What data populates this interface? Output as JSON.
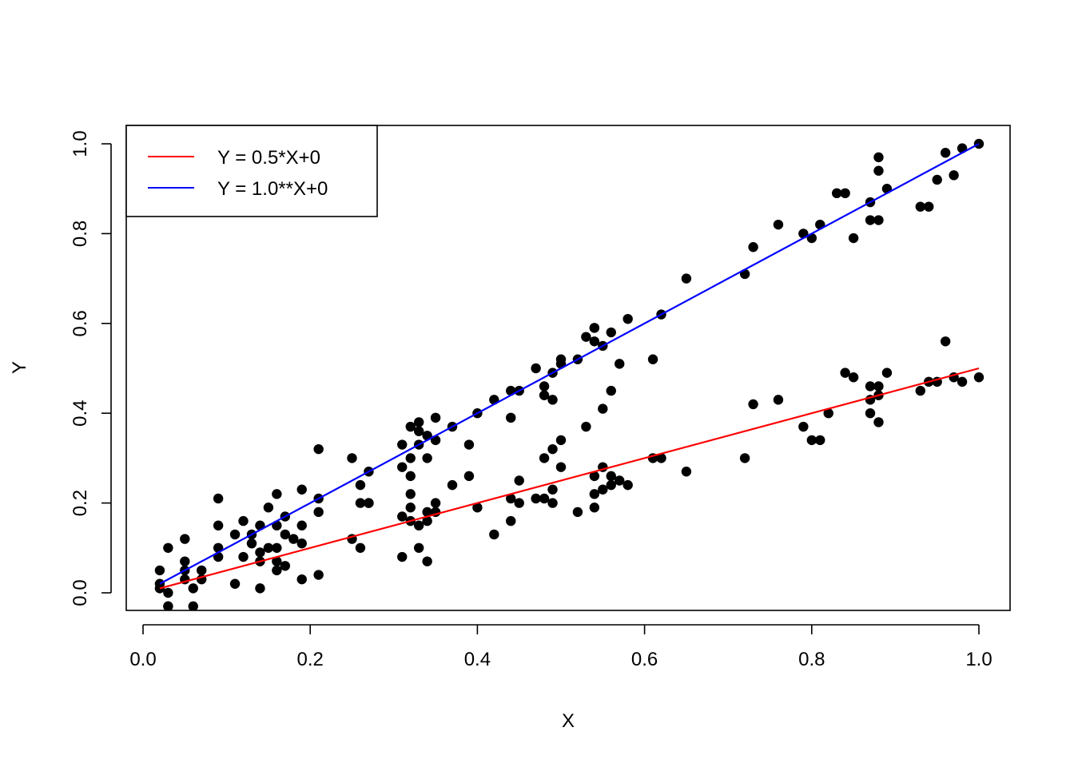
{
  "chart_data": {
    "type": "scatter",
    "xlabel": "X",
    "ylabel": "Y",
    "xlim": [
      -0.0,
      1.0
    ],
    "ylim": [
      -0.04,
      1.04
    ],
    "x_ticks": [
      0.0,
      0.2,
      0.4,
      0.6,
      0.8,
      1.0
    ],
    "x_tick_labels": [
      "0.0",
      "0.2",
      "0.4",
      "0.6",
      "0.8",
      "1.0"
    ],
    "y_ticks": [
      0.0,
      0.2,
      0.4,
      0.6,
      0.8,
      1.0
    ],
    "y_tick_labels": [
      "0.0",
      "0.2",
      "0.4",
      "0.6",
      "0.8",
      "1.0"
    ],
    "grid": false,
    "legend_position": "top-left",
    "point_color": "#000000",
    "lines": [
      {
        "name": "Y = 0.5*X+0",
        "color": "#ff0000",
        "x": [
          0.02,
          1.0
        ],
        "y": [
          0.01,
          0.5
        ]
      },
      {
        "name": "Y = 1.0**X+0",
        "color": "#0000ff",
        "x": [
          0.02,
          1.0
        ],
        "y": [
          0.02,
          1.0
        ]
      }
    ],
    "series": [
      {
        "points": [
          [
            0.02,
            0.05
          ],
          [
            0.02,
            0.02
          ],
          [
            0.02,
            0.01
          ],
          [
            0.03,
            0.0
          ],
          [
            0.03,
            -0.03
          ],
          [
            0.03,
            -0.03
          ],
          [
            0.03,
            0.1
          ],
          [
            0.05,
            0.12
          ],
          [
            0.05,
            0.07
          ],
          [
            0.05,
            0.05
          ],
          [
            0.05,
            0.03
          ],
          [
            0.06,
            0.01
          ],
          [
            0.06,
            -0.03
          ],
          [
            0.07,
            0.05
          ],
          [
            0.07,
            0.03
          ],
          [
            0.09,
            0.21
          ],
          [
            0.09,
            0.15
          ],
          [
            0.09,
            0.1
          ],
          [
            0.09,
            0.08
          ],
          [
            0.11,
            0.13
          ],
          [
            0.11,
            0.02
          ],
          [
            0.12,
            0.16
          ],
          [
            0.12,
            0.08
          ],
          [
            0.13,
            0.13
          ],
          [
            0.13,
            0.11
          ],
          [
            0.14,
            0.09
          ],
          [
            0.14,
            0.07
          ],
          [
            0.14,
            0.01
          ],
          [
            0.14,
            0.15
          ],
          [
            0.15,
            0.19
          ],
          [
            0.15,
            0.1
          ],
          [
            0.16,
            0.22
          ],
          [
            0.16,
            0.15
          ],
          [
            0.16,
            0.1
          ],
          [
            0.16,
            0.07
          ],
          [
            0.16,
            0.05
          ],
          [
            0.17,
            0.17
          ],
          [
            0.17,
            0.13
          ],
          [
            0.17,
            0.06
          ],
          [
            0.18,
            0.12
          ],
          [
            0.19,
            0.23
          ],
          [
            0.19,
            0.15
          ],
          [
            0.19,
            0.11
          ],
          [
            0.19,
            0.03
          ],
          [
            0.21,
            0.21
          ],
          [
            0.21,
            0.18
          ],
          [
            0.21,
            0.32
          ],
          [
            0.21,
            0.04
          ],
          [
            0.25,
            0.3
          ],
          [
            0.25,
            0.12
          ],
          [
            0.26,
            0.2
          ],
          [
            0.26,
            0.1
          ],
          [
            0.26,
            0.24
          ],
          [
            0.27,
            0.2
          ],
          [
            0.27,
            0.27
          ],
          [
            0.27,
            0.2
          ],
          [
            0.31,
            0.33
          ],
          [
            0.31,
            0.28
          ],
          [
            0.31,
            0.17
          ],
          [
            0.31,
            0.08
          ],
          [
            0.32,
            0.26
          ],
          [
            0.32,
            0.3
          ],
          [
            0.32,
            0.22
          ],
          [
            0.32,
            0.19
          ],
          [
            0.32,
            0.16
          ],
          [
            0.32,
            0.37
          ],
          [
            0.33,
            0.38
          ],
          [
            0.33,
            0.36
          ],
          [
            0.33,
            0.33
          ],
          [
            0.33,
            0.15
          ],
          [
            0.33,
            0.1
          ],
          [
            0.34,
            0.07
          ],
          [
            0.34,
            0.35
          ],
          [
            0.34,
            0.3
          ],
          [
            0.34,
            0.18
          ],
          [
            0.34,
            0.16
          ],
          [
            0.35,
            0.39
          ],
          [
            0.35,
            0.34
          ],
          [
            0.35,
            0.2
          ],
          [
            0.35,
            0.18
          ],
          [
            0.37,
            0.37
          ],
          [
            0.37,
            0.24
          ],
          [
            0.39,
            0.33
          ],
          [
            0.39,
            0.26
          ],
          [
            0.4,
            0.4
          ],
          [
            0.4,
            0.19
          ],
          [
            0.42,
            0.43
          ],
          [
            0.42,
            0.13
          ],
          [
            0.44,
            0.39
          ],
          [
            0.44,
            0.45
          ],
          [
            0.44,
            0.21
          ],
          [
            0.44,
            0.16
          ],
          [
            0.45,
            0.45
          ],
          [
            0.45,
            0.25
          ],
          [
            0.45,
            0.2
          ],
          [
            0.47,
            0.5
          ],
          [
            0.47,
            0.21
          ],
          [
            0.48,
            0.44
          ],
          [
            0.48,
            0.46
          ],
          [
            0.48,
            0.3
          ],
          [
            0.48,
            0.21
          ],
          [
            0.49,
            0.49
          ],
          [
            0.49,
            0.43
          ],
          [
            0.49,
            0.32
          ],
          [
            0.49,
            0.23
          ],
          [
            0.49,
            0.2
          ],
          [
            0.5,
            0.52
          ],
          [
            0.5,
            0.51
          ],
          [
            0.5,
            0.34
          ],
          [
            0.5,
            0.28
          ],
          [
            0.52,
            0.52
          ],
          [
            0.52,
            0.18
          ],
          [
            0.53,
            0.57
          ],
          [
            0.53,
            0.37
          ],
          [
            0.54,
            0.59
          ],
          [
            0.54,
            0.59
          ],
          [
            0.54,
            0.56
          ],
          [
            0.54,
            0.26
          ],
          [
            0.54,
            0.22
          ],
          [
            0.54,
            0.19
          ],
          [
            0.55,
            0.55
          ],
          [
            0.55,
            0.41
          ],
          [
            0.55,
            0.28
          ],
          [
            0.55,
            0.23
          ],
          [
            0.56,
            0.45
          ],
          [
            0.56,
            0.24
          ],
          [
            0.56,
            0.58
          ],
          [
            0.56,
            0.26
          ],
          [
            0.57,
            0.51
          ],
          [
            0.57,
            0.25
          ],
          [
            0.58,
            0.61
          ],
          [
            0.58,
            0.24
          ],
          [
            0.61,
            0.52
          ],
          [
            0.61,
            0.3
          ],
          [
            0.62,
            0.62
          ],
          [
            0.62,
            0.3
          ],
          [
            0.65,
            0.7
          ],
          [
            0.65,
            0.27
          ],
          [
            0.72,
            0.71
          ],
          [
            0.72,
            0.3
          ],
          [
            0.73,
            0.77
          ],
          [
            0.73,
            0.42
          ],
          [
            0.76,
            0.82
          ],
          [
            0.76,
            0.43
          ],
          [
            0.79,
            0.8
          ],
          [
            0.79,
            0.37
          ],
          [
            0.8,
            0.79
          ],
          [
            0.8,
            0.34
          ],
          [
            0.81,
            0.82
          ],
          [
            0.81,
            0.34
          ],
          [
            0.82,
            0.4
          ],
          [
            0.83,
            0.89
          ],
          [
            0.84,
            0.89
          ],
          [
            0.84,
            0.49
          ],
          [
            0.85,
            0.79
          ],
          [
            0.85,
            0.48
          ],
          [
            0.87,
            0.87
          ],
          [
            0.87,
            0.83
          ],
          [
            0.87,
            0.46
          ],
          [
            0.87,
            0.43
          ],
          [
            0.87,
            0.4
          ],
          [
            0.88,
            0.97
          ],
          [
            0.88,
            0.94
          ],
          [
            0.88,
            0.83
          ],
          [
            0.88,
            0.46
          ],
          [
            0.88,
            0.44
          ],
          [
            0.88,
            0.38
          ],
          [
            0.89,
            0.9
          ],
          [
            0.89,
            0.49
          ],
          [
            0.93,
            0.86
          ],
          [
            0.93,
            0.45
          ],
          [
            0.94,
            0.86
          ],
          [
            0.94,
            0.47
          ],
          [
            0.95,
            0.92
          ],
          [
            0.95,
            0.47
          ],
          [
            0.96,
            0.98
          ],
          [
            0.96,
            0.56
          ],
          [
            0.97,
            0.93
          ],
          [
            0.97,
            0.48
          ],
          [
            0.98,
            0.99
          ],
          [
            0.98,
            0.47
          ],
          [
            1.0,
            1.0
          ],
          [
            1.0,
            0.48
          ]
        ]
      }
    ]
  }
}
